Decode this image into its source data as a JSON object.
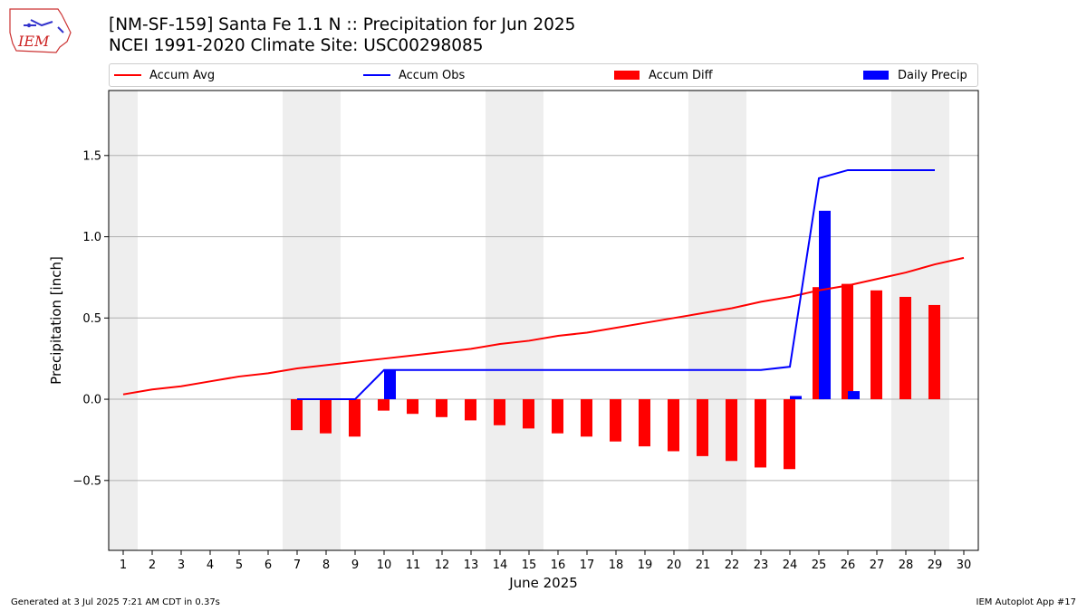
{
  "header": {
    "title_line1": "[NM-SF-159] Santa Fe 1.1 N :: Precipitation for Jun 2025",
    "title_line2": "NCEI 1991-2020 Climate Site: USC00298085"
  },
  "logo": {
    "text": "IEM",
    "icon": "iowa-state-map-logo"
  },
  "footer": {
    "left": "Generated at 3 Jul 2025 7:21 AM CDT in 0.37s",
    "right": "IEM Autoplot App #17"
  },
  "colors": {
    "avg": "#ff0000",
    "obs": "#0000ff",
    "diff": "#ff0000",
    "daily": "#0000ff",
    "weekend_shade": "#eeeeee",
    "grid": "#b0b0b0"
  },
  "chart_data": {
    "type": "bar",
    "title": "[NM-SF-159] Santa Fe 1.1 N :: Precipitation for Jun 2025",
    "subtitle": "NCEI 1991-2020 Climate Site: USC00298085",
    "xlabel": "June 2025",
    "ylabel": "Precipitation [inch]",
    "ylim": [
      -0.93,
      1.9
    ],
    "yticks": [
      -0.5,
      0.0,
      0.5,
      1.0,
      1.5
    ],
    "ytick_labels": [
      "−0.5",
      "0.0",
      "0.5",
      "1.0",
      "1.5"
    ],
    "x": [
      1,
      2,
      3,
      4,
      5,
      6,
      7,
      8,
      9,
      10,
      11,
      12,
      13,
      14,
      15,
      16,
      17,
      18,
      19,
      20,
      21,
      22,
      23,
      24,
      25,
      26,
      27,
      28,
      29,
      30
    ],
    "xtick_labels": [
      "1",
      "2",
      "3",
      "4",
      "5",
      "6",
      "7",
      "8",
      "9",
      "10",
      "11",
      "12",
      "13",
      "14",
      "15",
      "16",
      "17",
      "18",
      "19",
      "20",
      "21",
      "22",
      "23",
      "24",
      "25",
      "26",
      "27",
      "28",
      "29",
      "30"
    ],
    "shaded_days": [
      [
        1,
        1
      ],
      [
        7,
        8
      ],
      [
        14,
        15
      ],
      [
        21,
        22
      ],
      [
        28,
        29
      ]
    ],
    "grid": "horizontal",
    "legend": {
      "placement": "top",
      "entries": [
        "Accum Avg",
        "Accum Obs",
        "Accum Diff",
        "Daily Precip"
      ]
    },
    "series": [
      {
        "name": "Accum Avg",
        "kind": "line",
        "values": [
          0.03,
          0.06,
          0.08,
          0.11,
          0.14,
          0.16,
          0.19,
          0.21,
          0.23,
          0.25,
          0.27,
          0.29,
          0.31,
          0.34,
          0.36,
          0.39,
          0.41,
          0.44,
          0.47,
          0.5,
          0.53,
          0.56,
          0.6,
          0.63,
          0.67,
          0.7,
          0.74,
          0.78,
          0.83,
          0.87
        ]
      },
      {
        "name": "Accum Obs",
        "kind": "line",
        "values": [
          null,
          null,
          null,
          null,
          null,
          null,
          0.0,
          0.0,
          0.0,
          0.18,
          0.18,
          0.18,
          0.18,
          0.18,
          0.18,
          0.18,
          0.18,
          0.18,
          0.18,
          0.18,
          0.18,
          0.18,
          0.18,
          0.2,
          1.36,
          1.41,
          1.41,
          1.41,
          1.41,
          null
        ]
      },
      {
        "name": "Accum Diff",
        "kind": "bar",
        "values": [
          null,
          null,
          null,
          null,
          null,
          null,
          -0.19,
          -0.21,
          -0.23,
          -0.07,
          -0.09,
          -0.11,
          -0.13,
          -0.16,
          -0.18,
          -0.21,
          -0.23,
          -0.26,
          -0.29,
          -0.32,
          -0.35,
          -0.38,
          -0.42,
          -0.43,
          0.69,
          0.71,
          0.67,
          0.63,
          0.58,
          null
        ]
      },
      {
        "name": "Daily Precip",
        "kind": "bar",
        "values": [
          null,
          null,
          null,
          null,
          null,
          null,
          0.0,
          0.0,
          0.0,
          0.18,
          0.0,
          0.0,
          0.0,
          0.0,
          0.0,
          0.0,
          0.0,
          0.0,
          0.0,
          0.0,
          0.0,
          0.0,
          0.0,
          0.02,
          1.16,
          0.05,
          0.0,
          0.0,
          0.0,
          null
        ]
      }
    ]
  }
}
